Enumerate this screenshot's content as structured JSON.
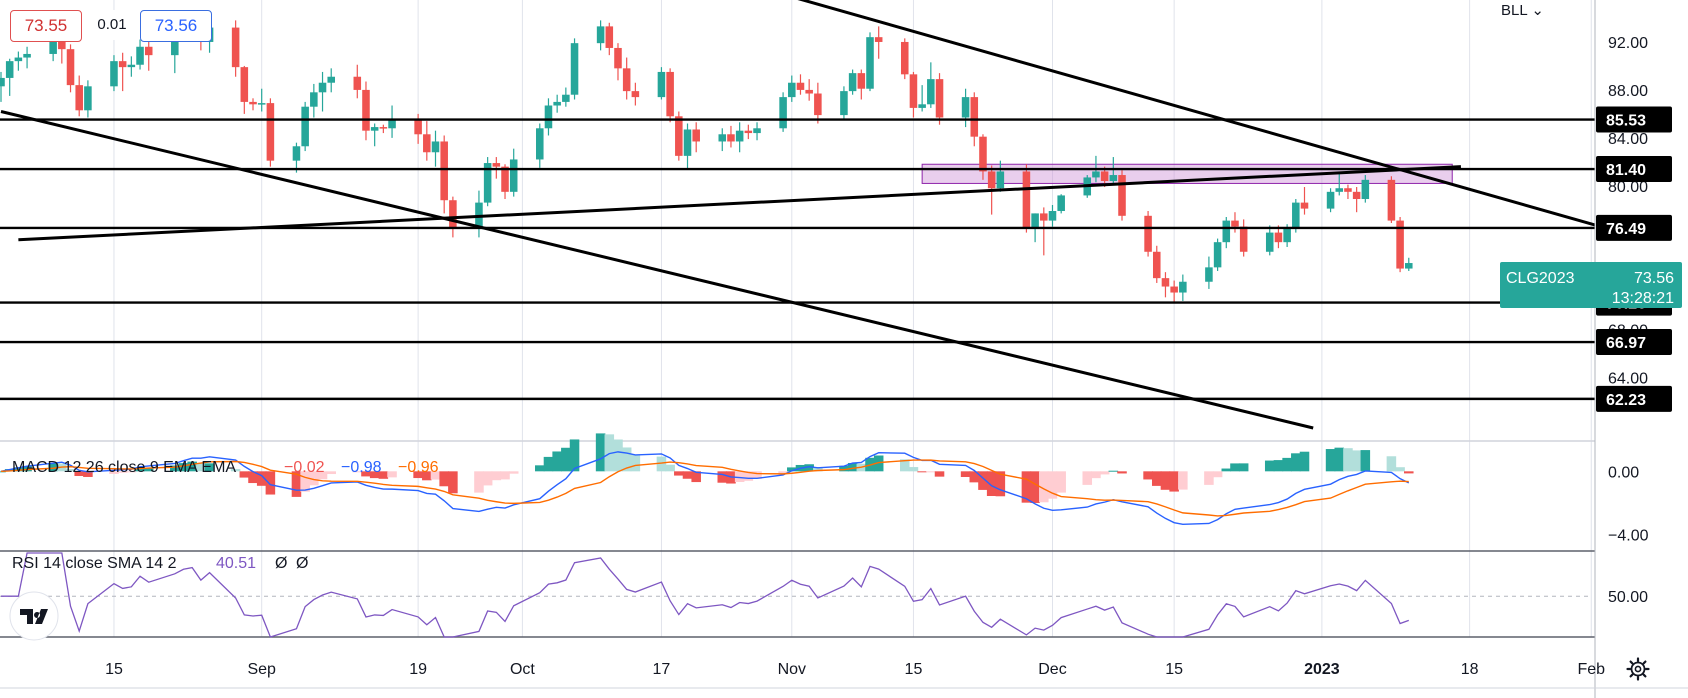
{
  "header": {
    "bid": "73.55",
    "spread": "0.01",
    "ask": "73.56",
    "symbol_menu": "BLL"
  },
  "badge": {
    "symbol": "CLG2023",
    "price": "73.56",
    "countdown": "13:28:21",
    "color": "#26a69a"
  },
  "colors": {
    "up": "#26a69a",
    "down": "#ef5350",
    "macd": "#2962ff",
    "signal": "#ff6d00",
    "rsi": "#7e57c2",
    "zone": "#ce93d8"
  },
  "chart_data": [
    {
      "type": "candlestick",
      "panel": "price",
      "x_axis_ticks": [
        "15",
        "Sep",
        "19",
        "Oct",
        "17",
        "Nov",
        "15",
        "Dec",
        "15",
        "2023",
        "18",
        "Feb"
      ],
      "y_axis_ticks": [
        "92.00",
        "88.00",
        "84.00",
        "80.00",
        "68.00",
        "64.00"
      ],
      "ylim": [
        58.8,
        95.5
      ],
      "horizontal_levels": [
        "85.53",
        "81.40",
        "76.49",
        "70.26",
        "66.97",
        "62.23"
      ],
      "trendlines": [
        {
          "from": [
            "2022-08-02",
            86.2
          ],
          "to": [
            "2022-12-31",
            59.8
          ]
        },
        {
          "from": [
            "2022-08-04",
            75.5
          ],
          "to": [
            "2023-01-17",
            81.6
          ]
        },
        {
          "from": [
            "2022-10-26",
            97.0
          ],
          "to": [
            "2023-02-05",
            76.0
          ]
        }
      ],
      "zone": {
        "from": "2022-11-16",
        "to": "2023-01-16",
        "low": 80.2,
        "high": 81.8
      },
      "candles_start": "2022-08-02",
      "candles": [
        [
          88.3,
          89.5,
          87.0,
          89.0
        ],
        [
          89.0,
          90.6,
          87.5,
          90.4
        ],
        [
          90.4,
          91.2,
          89.6,
          90.7
        ],
        [
          90.7,
          91.6,
          89.8,
          91.0
        ],
        [
          91.0,
          92.8,
          90.4,
          92.3
        ],
        [
          92.3,
          92.8,
          90.2,
          91.4
        ],
        [
          91.4,
          91.8,
          87.8,
          88.4
        ],
        [
          88.4,
          89.2,
          85.8,
          86.3
        ],
        [
          86.3,
          88.8,
          85.7,
          88.3
        ],
        [
          88.3,
          90.9,
          87.9,
          90.4
        ],
        [
          90.4,
          91.1,
          87.9,
          89.9
        ],
        [
          89.9,
          90.8,
          89.1,
          90.1
        ],
        [
          90.1,
          92.2,
          89.7,
          91.6
        ],
        [
          91.6,
          92.1,
          89.6,
          90.9
        ],
        [
          90.9,
          92.6,
          89.4,
          92.3
        ],
        [
          92.3,
          93.7,
          92.0,
          93.1
        ],
        [
          93.1,
          94.4,
          92.5,
          93.4
        ],
        [
          93.4,
          93.8,
          91.3,
          92.0
        ],
        [
          92.0,
          93.9,
          91.1,
          93.2
        ],
        [
          93.2,
          93.8,
          89.1,
          89.9
        ],
        [
          89.9,
          90.0,
          86.0,
          87.0
        ],
        [
          87.0,
          87.3,
          86.3,
          86.8
        ],
        [
          86.8,
          88.1,
          86.2,
          86.9
        ],
        [
          86.9,
          87.3,
          81.6,
          82.1
        ],
        [
          82.1,
          83.6,
          81.1,
          83.3
        ],
        [
          83.3,
          87.0,
          82.9,
          86.6
        ],
        [
          86.6,
          88.5,
          85.7,
          87.8
        ],
        [
          87.8,
          89.5,
          86.2,
          88.6
        ],
        [
          88.6,
          89.8,
          87.8,
          89.1
        ],
        [
          89.1,
          90.1,
          87.3,
          88.0
        ],
        [
          88.0,
          88.7,
          83.8,
          84.6
        ],
        [
          84.6,
          85.2,
          83.3,
          84.9
        ],
        [
          84.9,
          85.1,
          84.4,
          84.8
        ],
        [
          84.8,
          86.7,
          84.0,
          85.6
        ],
        [
          85.6,
          86.0,
          83.5,
          84.3
        ],
        [
          84.3,
          85.4,
          82.1,
          82.8
        ],
        [
          82.8,
          84.6,
          81.6,
          83.7
        ],
        [
          83.7,
          84.2,
          77.7,
          78.8
        ],
        [
          78.8,
          79.1,
          75.7,
          76.4
        ],
        [
          76.4,
          79.6,
          75.7,
          78.6
        ],
        [
          78.6,
          82.4,
          78.3,
          81.9
        ],
        [
          81.9,
          82.4,
          80.6,
          81.6
        ],
        [
          81.6,
          81.8,
          78.9,
          79.5
        ],
        [
          79.5,
          83.1,
          79.1,
          82.2
        ],
        [
          82.2,
          85.2,
          81.5,
          84.8
        ],
        [
          84.8,
          87.3,
          84.2,
          86.7
        ],
        [
          86.7,
          87.6,
          86.1,
          87.0
        ],
        [
          87.0,
          88.2,
          86.6,
          87.6
        ],
        [
          87.6,
          92.3,
          87.2,
          91.9
        ],
        [
          91.9,
          93.8,
          91.3,
          93.3
        ],
        [
          93.3,
          93.6,
          90.9,
          91.5
        ],
        [
          91.5,
          91.9,
          88.8,
          89.8
        ],
        [
          89.8,
          90.7,
          87.2,
          87.9
        ],
        [
          87.9,
          88.6,
          86.7,
          87.4
        ],
        [
          87.4,
          89.9,
          87.2,
          89.5
        ],
        [
          89.5,
          89.8,
          85.3,
          85.8
        ],
        [
          85.8,
          86.2,
          82.1,
          82.5
        ],
        [
          82.5,
          85.2,
          81.4,
          84.7
        ],
        [
          84.7,
          85.3,
          82.8,
          83.7
        ],
        [
          83.7,
          84.8,
          82.9,
          84.3
        ],
        [
          84.3,
          85.0,
          83.2,
          83.7
        ],
        [
          83.7,
          85.3,
          82.8,
          84.6
        ],
        [
          84.6,
          85.1,
          83.9,
          84.4
        ],
        [
          84.4,
          85.3,
          83.8,
          84.8
        ],
        [
          84.8,
          87.8,
          84.5,
          87.4
        ],
        [
          87.4,
          89.2,
          87.0,
          88.6
        ],
        [
          88.6,
          89.3,
          87.6,
          88.0
        ],
        [
          88.0,
          88.9,
          87.1,
          87.7
        ],
        [
          87.7,
          88.6,
          85.2,
          85.9
        ],
        [
          85.9,
          88.3,
          85.6,
          87.9
        ],
        [
          87.9,
          89.7,
          87.6,
          89.4
        ],
        [
          89.4,
          89.7,
          87.2,
          88.1
        ],
        [
          88.1,
          92.8,
          87.9,
          92.4
        ],
        [
          92.4,
          93.3,
          90.6,
          92.0
        ],
        [
          92.0,
          92.3,
          88.9,
          89.3
        ],
        [
          89.3,
          89.5,
          85.7,
          86.5
        ],
        [
          86.5,
          88.4,
          86.2,
          86.8
        ],
        [
          86.8,
          90.3,
          86.5,
          88.9
        ],
        [
          88.9,
          89.4,
          85.1,
          85.7
        ],
        [
          85.7,
          88.1,
          84.9,
          87.4
        ],
        [
          87.4,
          87.8,
          83.3,
          84.1
        ],
        [
          84.1,
          84.3,
          80.5,
          81.2
        ],
        [
          81.2,
          81.7,
          77.6,
          79.8
        ],
        [
          79.8,
          82.1,
          79.5,
          81.2
        ],
        [
          81.2,
          81.8,
          76.1,
          76.5
        ],
        [
          76.5,
          77.7,
          75.3,
          77.7
        ],
        [
          77.7,
          78.2,
          74.2,
          77.1
        ],
        [
          77.1,
          78.4,
          76.6,
          77.9
        ],
        [
          77.9,
          79.3,
          77.7,
          79.2
        ],
        [
          79.2,
          80.9,
          79.0,
          80.7
        ],
        [
          80.7,
          82.5,
          80.3,
          81.2
        ],
        [
          81.2,
          81.6,
          79.9,
          80.4
        ],
        [
          80.4,
          82.4,
          80.2,
          80.9
        ],
        [
          80.9,
          81.3,
          77.1,
          77.5
        ],
        [
          77.5,
          77.9,
          74.1,
          74.5
        ],
        [
          74.5,
          75.0,
          71.9,
          72.3
        ],
        [
          72.3,
          72.8,
          70.7,
          71.6
        ],
        [
          71.6,
          72.1,
          70.2,
          71.1
        ],
        [
          71.1,
          72.6,
          70.4,
          72.0
        ],
        [
          72.0,
          74.1,
          71.4,
          73.2
        ],
        [
          73.2,
          75.6,
          72.9,
          75.3
        ],
        [
          75.3,
          77.4,
          74.8,
          77.1
        ],
        [
          77.1,
          77.8,
          76.1,
          76.6
        ],
        [
          76.6,
          77.2,
          74.1,
          74.5
        ],
        [
          74.5,
          76.7,
          74.2,
          76.1
        ],
        [
          76.1,
          76.7,
          74.8,
          75.3
        ],
        [
          75.3,
          76.8,
          74.9,
          76.5
        ],
        [
          76.5,
          78.9,
          76.1,
          78.6
        ],
        [
          78.6,
          79.9,
          77.6,
          78.1
        ],
        [
          78.1,
          79.8,
          77.8,
          79.5
        ],
        [
          79.5,
          81.1,
          79.2,
          79.8
        ],
        [
          79.8,
          80.1,
          78.9,
          79.5
        ],
        [
          79.5,
          79.9,
          77.8,
          78.9
        ],
        [
          78.9,
          80.9,
          78.6,
          80.5
        ],
        [
          80.5,
          80.8,
          76.9,
          77.1
        ],
        [
          77.1,
          77.4,
          72.8,
          73.1
        ],
        [
          73.1,
          74.0,
          72.9,
          73.56
        ]
      ]
    },
    {
      "type": "macd",
      "panel": "MACD",
      "title": "MACD 12 26 close 9 EMA EMA",
      "value_histogram": "−0.02",
      "value_macd": "−0.98",
      "value_signal": "−0.96",
      "y_axis_ticks": [
        "0.00",
        "−4.00"
      ],
      "ylim": [
        -5.0,
        1.8
      ]
    },
    {
      "type": "rsi",
      "panel": "RSI",
      "title": "RSI 14 close SMA 14 2",
      "value": "40.51",
      "extra_values": [
        "Ø",
        "Ø"
      ],
      "y_axis_ticks": [
        "50.00"
      ],
      "ylim": [
        33.0,
        68.0
      ]
    }
  ]
}
